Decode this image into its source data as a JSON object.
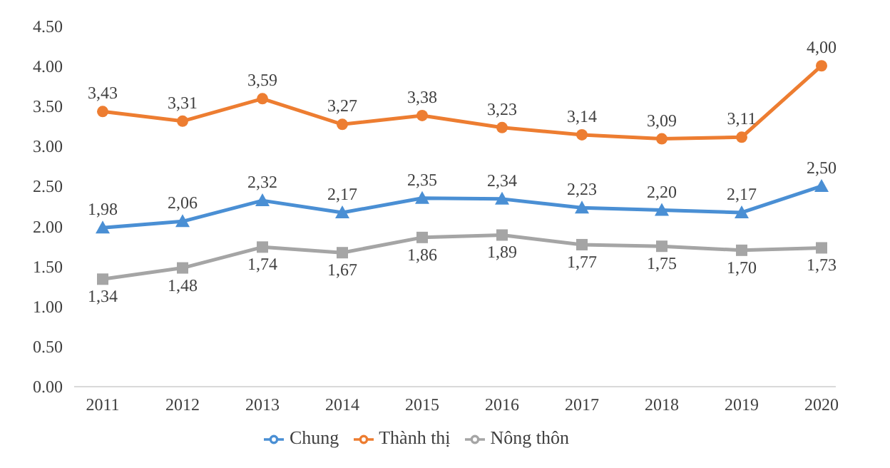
{
  "chart_data": {
    "type": "line",
    "categories": [
      "2011",
      "2012",
      "2013",
      "2014",
      "2015",
      "2016",
      "2017",
      "2018",
      "2019",
      "2020"
    ],
    "series": [
      {
        "name": "Chung",
        "color": "#4a8fd4",
        "marker": "triangle",
        "values": [
          1.98,
          2.06,
          2.32,
          2.17,
          2.35,
          2.34,
          2.23,
          2.2,
          2.17,
          2.5
        ],
        "value_labels": [
          "1,98",
          "2,06",
          "2,32",
          "2,17",
          "2,35",
          "2,34",
          "2,23",
          "2,20",
          "2,17",
          "2,50"
        ]
      },
      {
        "name": "Thành thị",
        "color": "#ed7d31",
        "marker": "circle",
        "values": [
          3.43,
          3.31,
          3.59,
          3.27,
          3.38,
          3.23,
          3.14,
          3.09,
          3.11,
          4.0
        ],
        "value_labels": [
          "3,43",
          "3,31",
          "3,59",
          "3,27",
          "3,38",
          "3,23",
          "3,14",
          "3,09",
          "3,11",
          "4,00"
        ]
      },
      {
        "name": "Nông thôn",
        "color": "#a5a5a5",
        "marker": "square",
        "values": [
          1.34,
          1.48,
          1.74,
          1.67,
          1.86,
          1.89,
          1.77,
          1.75,
          1.7,
          1.73
        ],
        "value_labels": [
          "1,34",
          "1,48",
          "1,74",
          "1,67",
          "1,86",
          "1,89",
          "1,77",
          "1,75",
          "1,70",
          "1,73"
        ]
      }
    ],
    "ylim": [
      0,
      4.5
    ],
    "yticks": [
      {
        "value": 0,
        "label": "0.00"
      },
      {
        "value": 0.5,
        "label": "0.50"
      },
      {
        "value": 1,
        "label": "1.00"
      },
      {
        "value": 1.5,
        "label": "1.50"
      },
      {
        "value": 2,
        "label": "2.00"
      },
      {
        "value": 2.5,
        "label": "2.50"
      },
      {
        "value": 3,
        "label": "3.00"
      },
      {
        "value": 3.5,
        "label": "3.50"
      },
      {
        "value": 4,
        "label": "4.00"
      },
      {
        "value": 4.5,
        "label": "4.50"
      }
    ],
    "grid": false,
    "legend": "bottom"
  }
}
